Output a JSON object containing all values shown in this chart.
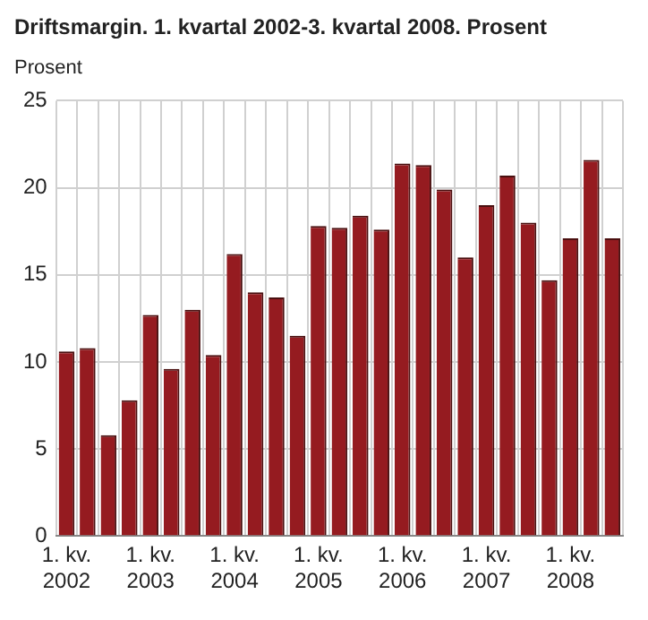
{
  "chart_data": {
    "type": "bar",
    "title": "Driftsmargin. 1. kvartal 2002-3. kvartal 2008. Prosent",
    "ylabel": "Prosent",
    "categories": [
      "1. kv.\n2002",
      null,
      null,
      null,
      "1. kv.\n2003",
      null,
      null,
      null,
      "1. kv.\n2004",
      null,
      null,
      null,
      "1. kv.\n2005",
      null,
      null,
      null,
      "1. kv.\n2006",
      null,
      null,
      null,
      "1. kv.\n2007",
      null,
      null,
      null,
      "1. kv.\n2008",
      null,
      null
    ],
    "values": [
      10.6,
      10.8,
      5.8,
      7.8,
      12.7,
      9.6,
      13.0,
      10.4,
      16.2,
      14.0,
      13.7,
      11.5,
      17.8,
      17.7,
      18.4,
      17.6,
      21.4,
      21.3,
      19.9,
      16.0,
      19.0,
      20.7,
      18.0,
      14.7,
      17.1,
      21.6,
      17.1
    ],
    "color": "#951b20",
    "ylim": [
      0,
      25
    ],
    "yticks": [
      0,
      5,
      10,
      15,
      20,
      25
    ],
    "grid": true,
    "legend": false
  }
}
